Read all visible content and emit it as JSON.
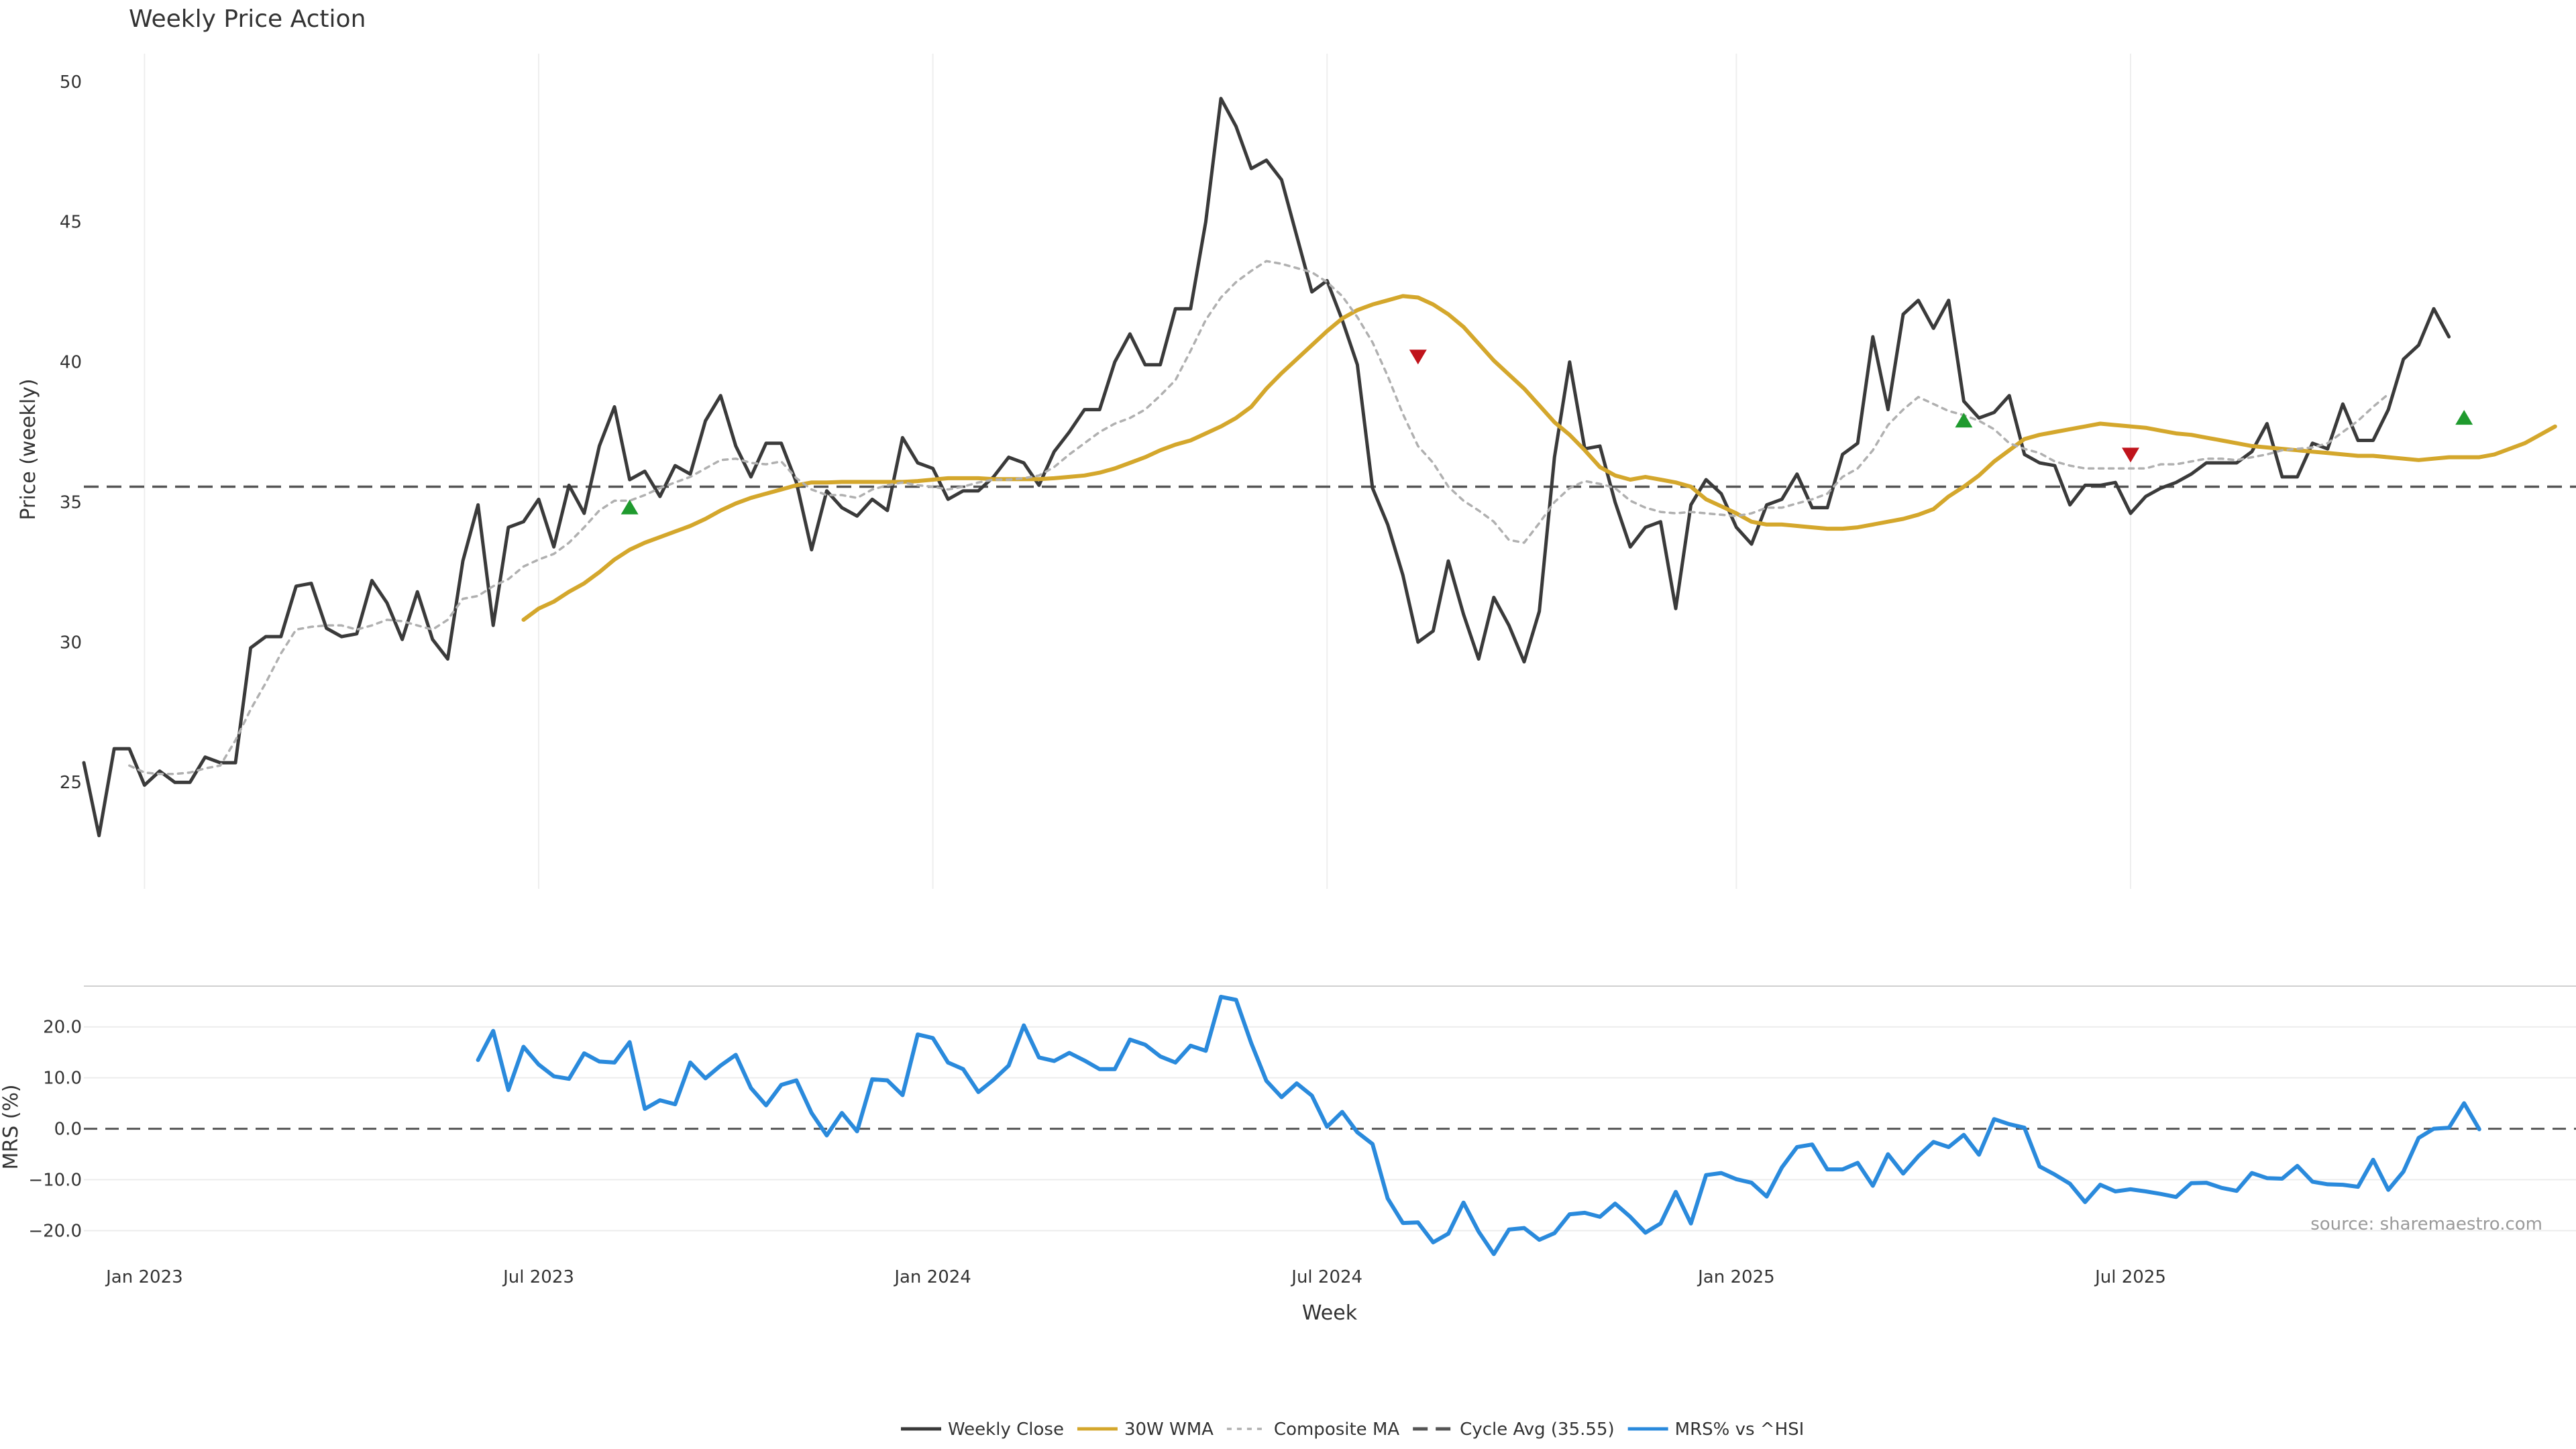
{
  "chart_data": {
    "type": "line",
    "title": "Weekly Price Action",
    "xlabel": "Week",
    "ylabel": "Price (weekly)",
    "ylabel2": "MRS (%)",
    "x_start": "2022-12-05",
    "x_ticks": [
      {
        "date": "2023-01-02",
        "label": "Jan 2023"
      },
      {
        "date": "2023-07-03",
        "label": "Jul 2023"
      },
      {
        "date": "2024-01-01",
        "label": "Jan 2024"
      },
      {
        "date": "2024-07-01",
        "label": "Jul 2024"
      },
      {
        "date": "2025-01-06",
        "label": "Jan 2025"
      },
      {
        "date": "2025-07-07",
        "label": "Jul 2025"
      }
    ],
    "y_ticks": [
      25,
      30,
      35,
      40,
      45,
      50
    ],
    "y_range": [
      21.2,
      51
    ],
    "y2_ticks": [
      {
        "value": 20,
        "label": "20.0"
      },
      {
        "value": 10,
        "label": "10.0"
      },
      {
        "value": 0,
        "label": "0.0"
      },
      {
        "value": -10,
        "label": "−10.0"
      },
      {
        "value": -20,
        "label": "−20.0"
      }
    ],
    "y2_range": [
      -26,
      28
    ],
    "grid": true,
    "legend_position": "bottom-center",
    "cycle_avg": 35.55,
    "series": [
      {
        "name": "Weekly Close",
        "color": "#3a3a3a",
        "style": "solid",
        "start_index": 0,
        "values": [
          25.7,
          23.1,
          26.2,
          26.2,
          24.9,
          25.4,
          25.0,
          25.0,
          25.9,
          25.7,
          25.7,
          29.8,
          30.2,
          30.2,
          32.0,
          32.1,
          30.5,
          30.2,
          30.3,
          32.2,
          31.4,
          30.1,
          31.8,
          30.1,
          29.4,
          32.9,
          34.9,
          30.6,
          34.1,
          34.3,
          35.1,
          33.4,
          35.6,
          34.6,
          37.0,
          38.4,
          35.8,
          36.1,
          35.2,
          36.3,
          36.0,
          37.9,
          38.8,
          37.0,
          35.9,
          37.1,
          37.1,
          35.7,
          33.3,
          35.4,
          34.8,
          34.5,
          35.1,
          34.7,
          37.3,
          36.4,
          36.2,
          35.1,
          35.4,
          35.4,
          35.9,
          36.6,
          36.4,
          35.6,
          36.8,
          37.5,
          38.3,
          38.3,
          40.0,
          41.0,
          39.9,
          39.9,
          41.9,
          41.9,
          45.0,
          49.4,
          48.4,
          46.9,
          47.2,
          46.5,
          44.5,
          42.5,
          42.9,
          41.5,
          39.9,
          35.5,
          34.2,
          32.4,
          30.0,
          30.4,
          32.9,
          31.0,
          29.4,
          31.6,
          30.6,
          29.3,
          31.1,
          36.6,
          40.0,
          36.9,
          37.0,
          35.0,
          33.4,
          34.1,
          34.3,
          31.2,
          34.9,
          35.8,
          35.3,
          34.1,
          33.5,
          34.9,
          35.1,
          36.0,
          34.8,
          34.8,
          36.7,
          37.1,
          40.9,
          38.3,
          41.7,
          42.2,
          41.2,
          42.2,
          38.6,
          38.0,
          38.2,
          38.8,
          36.7,
          36.4,
          36.3,
          34.9,
          35.6,
          35.6,
          35.7,
          34.6,
          35.2,
          35.5,
          35.7,
          36.0,
          36.4,
          36.4,
          36.4,
          36.8,
          37.8,
          35.9,
          35.9,
          37.1,
          36.9,
          38.5,
          37.2,
          37.2,
          38.3,
          40.1,
          40.6,
          41.9,
          40.9
        ]
      },
      {
        "name": "30W WMA",
        "color": "#d4a72c",
        "style": "solid",
        "start_index": 29,
        "values": [
          30.8,
          31.2,
          31.45,
          31.8,
          32.1,
          32.5,
          32.95,
          33.3,
          33.55,
          33.75,
          33.95,
          34.15,
          34.4,
          34.7,
          34.95,
          35.15,
          35.3,
          35.45,
          35.6,
          35.7,
          35.7,
          35.72,
          35.72,
          35.72,
          35.72,
          35.72,
          35.75,
          35.8,
          35.85,
          35.85,
          35.85,
          35.82,
          35.82,
          35.82,
          35.82,
          35.85,
          35.9,
          35.95,
          36.05,
          36.2,
          36.4,
          36.6,
          36.85,
          37.05,
          37.2,
          37.45,
          37.7,
          38.0,
          38.4,
          39.05,
          39.6,
          40.1,
          40.6,
          41.1,
          41.55,
          41.85,
          42.05,
          42.2,
          42.35,
          42.3,
          42.05,
          41.7,
          41.25,
          40.65,
          40.05,
          39.55,
          39.05,
          38.45,
          37.85,
          37.4,
          36.85,
          36.25,
          35.95,
          35.8,
          35.9,
          35.8,
          35.7,
          35.55,
          35.1,
          34.85,
          34.6,
          34.3,
          34.2,
          34.2,
          34.15,
          34.1,
          34.05,
          34.05,
          34.1,
          34.2,
          34.3,
          34.4,
          34.55,
          34.75,
          35.2,
          35.55,
          35.95,
          36.45,
          36.85,
          37.25,
          37.4,
          37.5,
          37.6,
          37.7,
          37.8,
          37.75,
          37.7,
          37.65,
          37.55,
          37.45,
          37.4,
          37.3,
          37.2,
          37.1,
          37.0,
          36.95,
          36.9,
          36.85,
          36.8,
          36.75,
          36.7,
          36.65,
          36.65,
          36.6,
          36.55,
          36.5,
          36.55,
          36.6,
          36.6,
          36.6,
          36.7,
          36.9,
          37.1,
          37.4,
          37.7
        ]
      },
      {
        "name": "Composite MA",
        "color": "#b0b0b0",
        "style": "dotted",
        "start_index": 3,
        "values": [
          25.6,
          25.35,
          25.3,
          25.3,
          25.35,
          25.5,
          25.6,
          26.5,
          27.6,
          28.55,
          29.6,
          30.45,
          30.55,
          30.6,
          30.6,
          30.45,
          30.6,
          30.8,
          30.75,
          30.6,
          30.45,
          30.8,
          31.55,
          31.65,
          32.0,
          32.25,
          32.7,
          32.95,
          33.15,
          33.55,
          34.1,
          34.7,
          35.05,
          35.05,
          35.25,
          35.5,
          35.7,
          35.9,
          36.2,
          36.5,
          36.55,
          36.4,
          36.35,
          36.45,
          35.85,
          35.45,
          35.25,
          35.25,
          35.15,
          35.45,
          35.6,
          35.7,
          35.6,
          35.55,
          35.45,
          35.55,
          35.7,
          35.8,
          35.8,
          35.85,
          35.95,
          36.25,
          36.7,
          37.1,
          37.5,
          37.8,
          38.0,
          38.3,
          38.8,
          39.35,
          40.4,
          41.5,
          42.3,
          42.85,
          43.25,
          43.6,
          43.5,
          43.35,
          43.2,
          42.85,
          42.35,
          41.6,
          40.7,
          39.5,
          38.15,
          37.0,
          36.4,
          35.55,
          35.05,
          34.7,
          34.3,
          33.65,
          33.55,
          34.25,
          35.0,
          35.5,
          35.75,
          35.65,
          35.5,
          35.05,
          34.8,
          34.65,
          34.6,
          34.65,
          34.6,
          34.55,
          34.5,
          34.6,
          34.8,
          34.8,
          34.95,
          35.1,
          35.3,
          35.9,
          36.2,
          36.85,
          37.75,
          38.3,
          38.75,
          38.5,
          38.25,
          38.1,
          37.9,
          37.6,
          37.1,
          36.9,
          36.75,
          36.45,
          36.3,
          36.2,
          36.2,
          36.2,
          36.2,
          36.2,
          36.35,
          36.35,
          36.45,
          36.55,
          36.55,
          36.5,
          36.6,
          36.7,
          36.85,
          36.9,
          36.95,
          37.1,
          37.5,
          37.9,
          38.4,
          38.85
        ]
      },
      {
        "name": "Cycle Avg (35.55)",
        "color": "#555555",
        "style": "dashed",
        "value": 35.55
      },
      {
        "name": "MRS% vs ^HSI",
        "color": "#2a8adc",
        "style": "solid",
        "start_index": 26,
        "values": [
          13.5,
          19.2,
          7.6,
          16.1,
          12.6,
          10.3,
          9.8,
          14.8,
          13.2,
          13.0,
          17.0,
          3.9,
          5.6,
          4.8,
          13.0,
          9.9,
          12.4,
          14.5,
          8.0,
          4.6,
          8.6,
          9.5,
          3.1,
          -1.3,
          3.1,
          -0.5,
          9.7,
          9.5,
          6.6,
          18.5,
          17.8,
          13.0,
          11.7,
          7.2,
          9.6,
          12.4,
          20.3,
          14.0,
          13.3,
          14.9,
          13.4,
          11.7,
          11.7,
          17.5,
          16.5,
          14.2,
          13.0,
          16.3,
          15.3,
          25.9,
          25.3,
          16.8,
          9.4,
          6.2,
          8.9,
          6.5,
          0.4,
          3.3,
          -0.7,
          -3.0,
          -13.7,
          -18.5,
          -18.4,
          -22.3,
          -20.6,
          -14.5,
          -20.2,
          -24.6,
          -19.8,
          -19.5,
          -21.8,
          -20.5,
          -16.8,
          -16.5,
          -17.3,
          -14.7,
          -17.3,
          -20.4,
          -18.6,
          -12.4,
          -18.6,
          -9.1,
          -8.7,
          -9.9,
          -10.6,
          -13.3,
          -7.6,
          -3.6,
          -3.1,
          -8.0,
          -8.0,
          -6.7,
          -11.2,
          -5.0,
          -8.8,
          -5.4,
          -2.6,
          -3.6,
          -1.2,
          -5.1,
          1.9,
          0.9,
          0.2,
          -7.4,
          -9.0,
          -10.8,
          -14.4,
          -11.0,
          -12.3,
          -11.9,
          -12.3,
          -12.8,
          -13.4,
          -10.7,
          -10.6,
          -11.6,
          -12.2,
          -8.7,
          -9.7,
          -9.8,
          -7.3,
          -10.4,
          -10.9,
          -11.0,
          -11.4,
          -6.1,
          -12.0,
          -8.4,
          -1.8,
          0.0,
          0.2,
          5.0,
          -0.1
        ]
      }
    ],
    "signals": [
      {
        "type": "buy",
        "index": 36,
        "value": 34.8,
        "color": "#1f9a2e"
      },
      {
        "type": "sell",
        "index": 88,
        "value": 40.2,
        "color": "#c0141c"
      },
      {
        "type": "buy",
        "index": 124,
        "value": 37.9,
        "color": "#1f9a2e"
      },
      {
        "type": "sell",
        "index": 135,
        "value": 36.7,
        "color": "#c0141c"
      },
      {
        "type": "buy",
        "index": 157,
        "value": 38.0,
        "color": "#1f9a2e"
      }
    ],
    "source": "source: sharemaestro.com"
  }
}
